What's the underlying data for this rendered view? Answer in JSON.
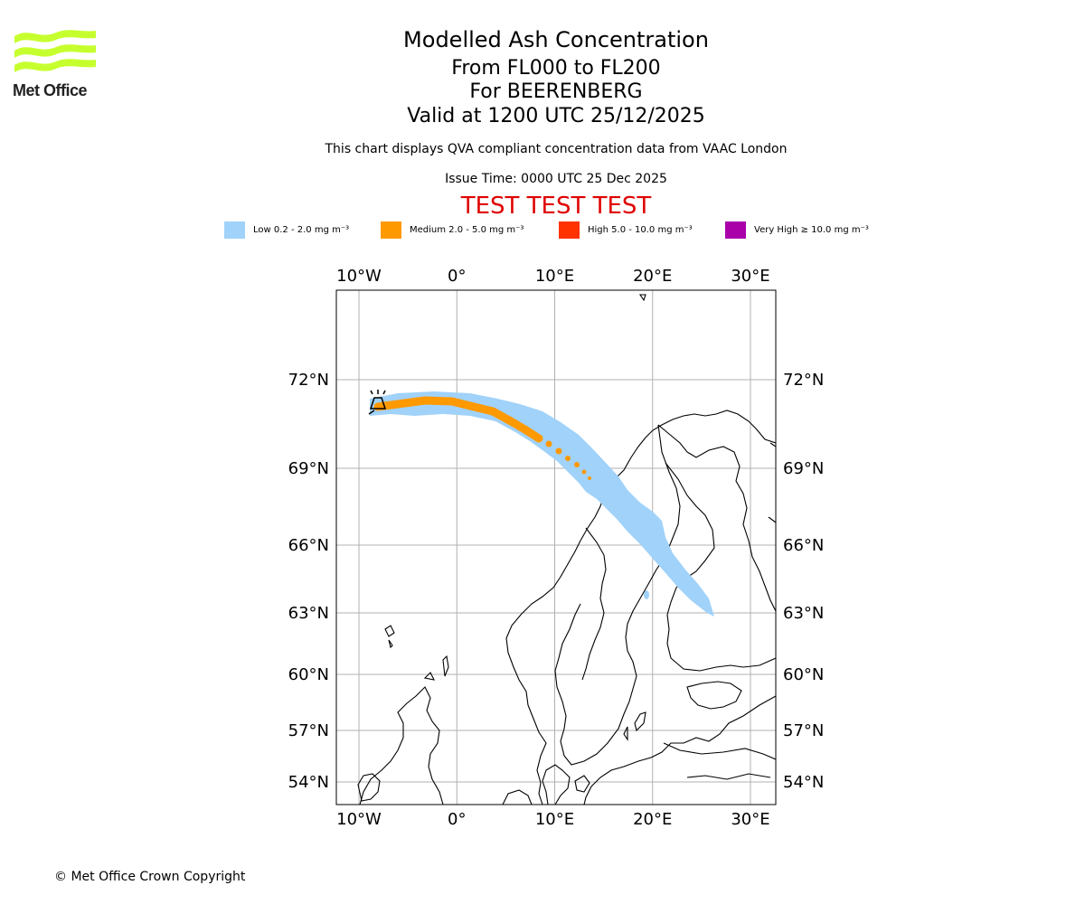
{
  "header": {
    "logo_text": "Met Office",
    "title": "Modelled Ash Concentration",
    "levels": "From FL000 to FL200",
    "volcano": "For BEERENBERG",
    "valid": "Valid at 1200 UTC 25/12/2025",
    "description": "This chart displays QVA compliant concentration data from VAAC London",
    "issue_time": "Issue Time: 0000 UTC 25 Dec 2025",
    "test_banner": "TEST TEST TEST"
  },
  "legend": [
    {
      "label": "Low 0.2 - 2.0 mg m⁻³",
      "color": "#a0d2fa"
    },
    {
      "label": "Medium 2.0 - 5.0 mg m⁻³",
      "color": "#ff9900"
    },
    {
      "label": "High 5.0 - 10.0 mg m⁻³",
      "color": "#ff3300"
    },
    {
      "label": "Very High  ≥  10.0 mg m⁻³",
      "color": "#aa00aa"
    }
  ],
  "map": {
    "lon_ticks": [
      {
        "label": "10°W",
        "lon": -10
      },
      {
        "label": "0°",
        "lon": 0
      },
      {
        "label": "10°E",
        "lon": 10
      },
      {
        "label": "20°E",
        "lon": 20
      },
      {
        "label": "30°E",
        "lon": 30
      }
    ],
    "lat_ticks": [
      {
        "label": "72°N",
        "lat": 72
      },
      {
        "label": "69°N",
        "lat": 69
      },
      {
        "label": "66°N",
        "lat": 66
      },
      {
        "label": "63°N",
        "lat": 63
      },
      {
        "label": "60°N",
        "lat": 60
      },
      {
        "label": "57°N",
        "lat": 57
      },
      {
        "label": "54°N",
        "lat": 54
      }
    ],
    "volcano_marker": "volcano-icon",
    "grid": true
  },
  "footer": {
    "copyright": "© Met Office Crown Copyright"
  }
}
